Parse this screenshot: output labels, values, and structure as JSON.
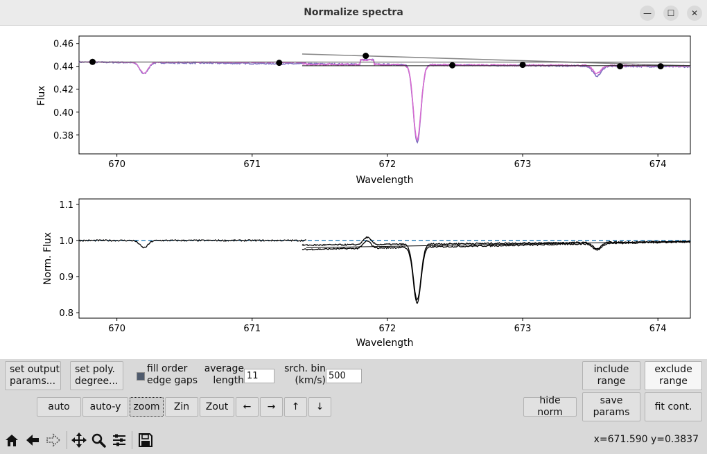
{
  "window": {
    "title": "Normalize spectra"
  },
  "top_plot": {
    "ylabel": "Flux",
    "xlabel": "Wavelength",
    "yticks": [
      "0.46",
      "0.44",
      "0.42",
      "0.40",
      "0.38"
    ],
    "xticks": [
      "670",
      "671",
      "672",
      "673",
      "674"
    ]
  },
  "bottom_plot": {
    "ylabel": "Norm. Flux",
    "xlabel": "Wavelength",
    "yticks": [
      "1.1",
      "1.0",
      "0.9",
      "0.8"
    ],
    "xticks": [
      "670",
      "671",
      "672",
      "673",
      "674"
    ]
  },
  "chart_data": [
    {
      "type": "line",
      "xlabel": "Wavelength",
      "ylabel": "Flux",
      "xlim": [
        669.72,
        674.24
      ],
      "ylim": [
        0.3635,
        0.4665
      ],
      "continuum_points": [
        [
          669.82,
          0.4439
        ],
        [
          671.2,
          0.4431
        ],
        [
          671.84,
          0.4492
        ],
        [
          672.48,
          0.4409
        ],
        [
          673.0,
          0.4413
        ],
        [
          673.72,
          0.4401
        ],
        [
          674.02,
          0.4401
        ]
      ],
      "absorption_lines": [
        [
          670.2,
          0.434
        ],
        [
          672.22,
          0.376
        ],
        [
          673.55,
          0.435
        ]
      ],
      "colors": {
        "spectrum_a": "#d66ad0",
        "spectrum_b": "#7f6fc0",
        "fit": "#8a8a8a",
        "continuum": "#000000"
      }
    },
    {
      "type": "line",
      "xlabel": "Wavelength",
      "ylabel": "Norm. Flux",
      "xlim": [
        669.72,
        674.24
      ],
      "ylim": [
        0.785,
        1.115
      ],
      "reference_level": 1.0,
      "absorption_lines": [
        [
          670.2,
          0.98
        ],
        [
          672.22,
          0.845
        ],
        [
          673.55,
          0.982
        ]
      ],
      "colors": {
        "spectrum": "#000000",
        "reference": "#1f77b4"
      }
    }
  ],
  "controls": {
    "set_output": "set output\nparams...",
    "set_poly": "set poly.\ndegree...",
    "fill_order": "fill order\nedge gaps",
    "average_length_label": "average\nlength",
    "average_length_value": "11",
    "srch_bin_label": "srch. bin\n(km/s)",
    "srch_bin_value": "500",
    "include_range": "include\nrange",
    "exclude_range": "exclude\nrange",
    "auto": "auto",
    "auto_y": "auto-y",
    "zoom": "zoom",
    "zin": "Zin",
    "zout": "Zout",
    "left": "←",
    "right": "→",
    "up": "↑",
    "down": "↓",
    "hide_norm": "hide norm",
    "save_params": "save\nparams",
    "fit_cont": "fit cont."
  },
  "toolbar": {
    "icons": [
      "home-icon",
      "back-icon",
      "forward-icon",
      "pan-icon",
      "zoom-icon",
      "configure-icon",
      "save-icon"
    ],
    "coords": "x=671.590 y=0.3837"
  }
}
